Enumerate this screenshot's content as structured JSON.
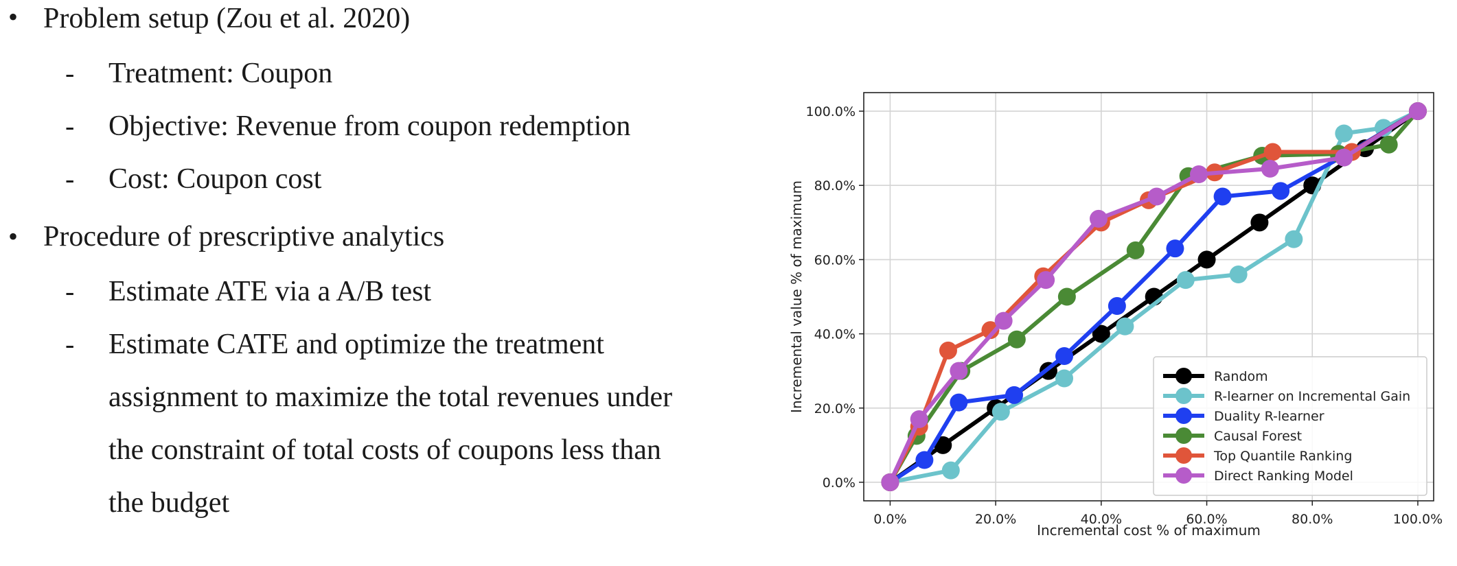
{
  "bullets": [
    {
      "text": "Problem setup (Zou et al. 2020)",
      "subitems": [
        "Treatment: Coupon",
        "Objective: Revenue from coupon redemption",
        "Cost: Coupon cost"
      ]
    },
    {
      "text": "Procedure of prescriptive analytics",
      "subitems": [
        "Estimate ATE via a A/B test",
        "Estimate CATE and optimize the treatment",
        "assignment to maximize the total revenues under",
        "the constraint of total costs of coupons less than",
        "the budget"
      ]
    }
  ],
  "chart_data": {
    "type": "line",
    "title": "",
    "xlabel": "Incremental cost % of maximum",
    "ylabel": "Incremental value % of maximum",
    "xlim": [
      -5,
      103
    ],
    "ylim": [
      -5,
      105
    ],
    "xticks": [
      "0.0%",
      "20.0%",
      "40.0%",
      "60.0%",
      "80.0%",
      "100.0%"
    ],
    "yticks": [
      "0.0%",
      "20.0%",
      "40.0%",
      "60.0%",
      "80.0%",
      "100.0%"
    ],
    "grid": true,
    "legend_position": "bottom-right",
    "series": [
      {
        "name": "Random",
        "color": "#000000",
        "x": [
          0,
          10,
          20,
          30,
          40,
          50,
          60,
          70,
          80,
          90,
          100
        ],
        "y": [
          0,
          10,
          20,
          30,
          40,
          50,
          60,
          70,
          80,
          90,
          100
        ]
      },
      {
        "name": "R-learner on Incremental Gain",
        "color": "#6cc3cb",
        "x": [
          0,
          11.5,
          21,
          33,
          44.5,
          56,
          66,
          76.5,
          86,
          93.5,
          100
        ],
        "y": [
          0,
          3.2,
          19,
          28,
          42,
          54.5,
          56,
          65.5,
          94,
          95.5,
          100
        ]
      },
      {
        "name": "Duality R-learner",
        "color": "#1f3ff0",
        "x": [
          0,
          6.5,
          13,
          23.5,
          33,
          43,
          54,
          63,
          74,
          86,
          100
        ],
        "y": [
          0,
          6,
          21.5,
          23.5,
          34,
          47.5,
          63,
          77,
          78.5,
          88,
          100
        ]
      },
      {
        "name": "Causal Forest",
        "color": "#4a8a35",
        "x": [
          0,
          5,
          13.5,
          24,
          33.5,
          46.5,
          56.5,
          70.5,
          85,
          94.5,
          100
        ],
        "y": [
          0,
          12.5,
          30,
          38.5,
          50,
          62.5,
          82.5,
          88,
          88.5,
          91,
          100
        ]
      },
      {
        "name": "Top Quantile Ranking",
        "color": "#e0553a",
        "x": [
          0,
          5.5,
          11,
          19,
          29,
          40,
          49,
          61.5,
          72.5,
          87.5,
          100
        ],
        "y": [
          0,
          15,
          35.5,
          41,
          55.5,
          70,
          76,
          83.5,
          89,
          89,
          100
        ]
      },
      {
        "name": "Direct Ranking Model",
        "color": "#b65cc9",
        "x": [
          0,
          5.5,
          13,
          21.5,
          29.5,
          39.5,
          50.5,
          58.5,
          72,
          86,
          100
        ],
        "y": [
          0,
          17,
          30,
          43.5,
          54.5,
          71,
          77,
          83,
          84.5,
          87.5,
          100
        ]
      }
    ]
  }
}
